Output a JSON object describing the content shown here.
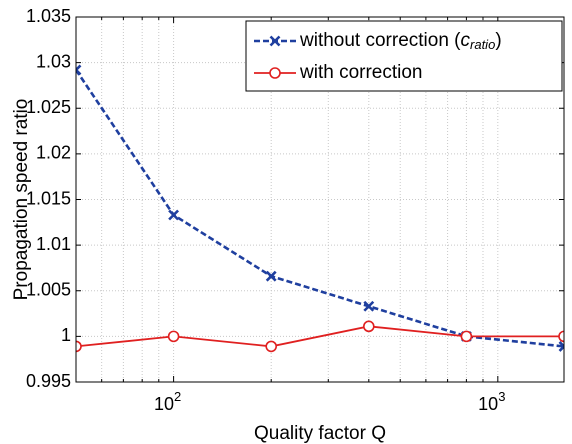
{
  "chart_data": {
    "type": "line",
    "xlabel": "Quality factor Q",
    "ylabel": "Propagation speed ratio",
    "xscale": "log",
    "xlim": [
      50,
      1600
    ],
    "ylim": [
      0.995,
      1.035
    ],
    "grid": true,
    "legend_position": "top-right",
    "x_major_ticks": [
      {
        "value": 100,
        "base": "10",
        "exp": "2"
      },
      {
        "value": 1000,
        "base": "10",
        "exp": "3"
      }
    ],
    "y_ticks": [
      {
        "value": 0.995,
        "label": "0.995"
      },
      {
        "value": 1.0,
        "label": "1"
      },
      {
        "value": 1.005,
        "label": "1.005"
      },
      {
        "value": 1.01,
        "label": "1.01"
      },
      {
        "value": 1.015,
        "label": "1.015"
      },
      {
        "value": 1.02,
        "label": "1.02"
      },
      {
        "value": 1.025,
        "label": "1.025"
      },
      {
        "value": 1.03,
        "label": "1.03"
      },
      {
        "value": 1.035,
        "label": "1.035"
      }
    ],
    "x": [
      50,
      100,
      200,
      400,
      800,
      1600
    ],
    "series": [
      {
        "name": "without correction (",
        "name_math": "c",
        "name_math_sub": "ratio",
        "name_suffix": ")",
        "color": "#1f3f9f",
        "line_style": "dashed",
        "marker": "x-icon",
        "values": [
          1.0292,
          1.0133,
          1.0066,
          1.0033,
          1.0,
          0.9989
        ]
      },
      {
        "name": "with correction",
        "color": "#e02020",
        "line_style": "solid",
        "marker": "circle-icon",
        "values": [
          0.9989,
          1.0,
          0.9989,
          1.0011,
          1.0,
          1.0
        ]
      }
    ]
  }
}
